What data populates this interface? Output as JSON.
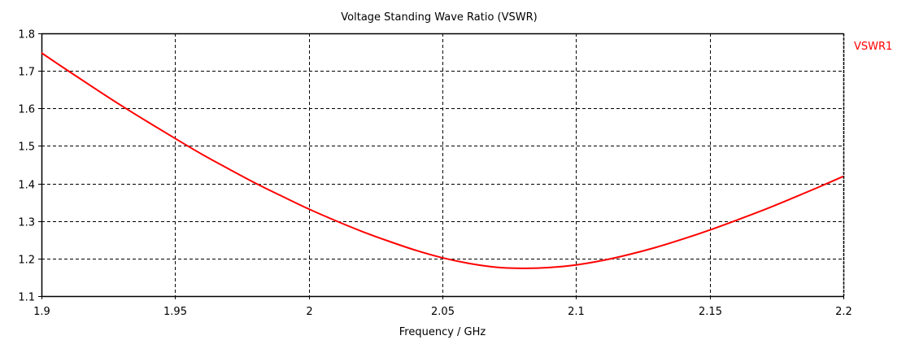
{
  "chart_data": {
    "type": "line",
    "title": "Voltage Standing Wave Ratio (VSWR)",
    "xlabel": "Frequency / GHz",
    "ylabel": "",
    "xlim": [
      1.9,
      2.2
    ],
    "ylim": [
      1.1,
      1.8
    ],
    "x_ticks": [
      "1.9",
      "1.95",
      "2",
      "2.05",
      "2.1",
      "2.15",
      "2.2"
    ],
    "y_ticks": [
      "1.1",
      "1.2",
      "1.3",
      "1.4",
      "1.5",
      "1.6",
      "1.7",
      "1.8"
    ],
    "grid": true,
    "legend_position": "right",
    "series": [
      {
        "name": "VSWR1",
        "color": "#ff0000",
        "x": [
          1.9,
          1.91,
          1.92,
          1.93,
          1.94,
          1.95,
          1.96,
          1.97,
          1.98,
          1.99,
          2.0,
          2.01,
          2.02,
          2.03,
          2.04,
          2.05,
          2.06,
          2.07,
          2.08,
          2.09,
          2.1,
          2.11,
          2.12,
          2.13,
          2.14,
          2.15,
          2.16,
          2.17,
          2.18,
          2.19,
          2.2
        ],
        "values": [
          1.748,
          1.7,
          1.653,
          1.607,
          1.563,
          1.52,
          1.478,
          1.439,
          1.401,
          1.366,
          1.332,
          1.301,
          1.272,
          1.246,
          1.222,
          1.202,
          1.187,
          1.177,
          1.174,
          1.176,
          1.183,
          1.195,
          1.211,
          1.23,
          1.252,
          1.276,
          1.302,
          1.329,
          1.358,
          1.388,
          1.419
        ]
      }
    ]
  }
}
